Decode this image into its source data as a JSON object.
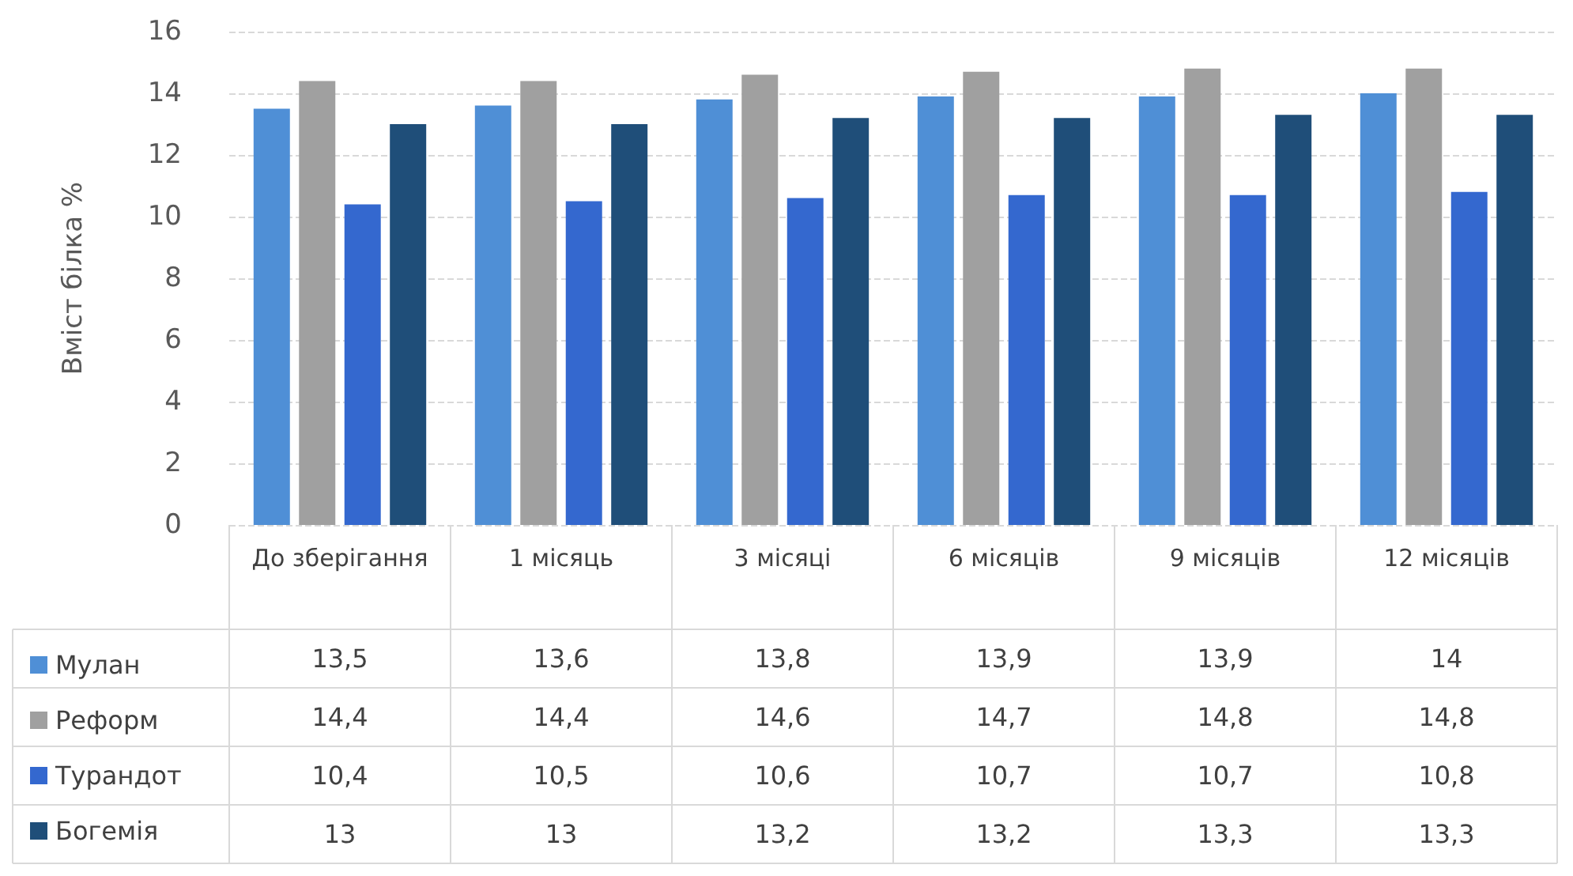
{
  "chart_data": {
    "type": "bar",
    "ylabel": "Вміст білка %",
    "categories": [
      "До зберігання",
      "1 місяць",
      "3 місяці",
      "6 місяців",
      "9 місяців",
      "12 місяців"
    ],
    "ylim": [
      0,
      16
    ],
    "yticks": [
      0,
      2,
      4,
      6,
      8,
      10,
      12,
      14,
      16
    ],
    "grid": "y",
    "legend": "bottom left",
    "series": [
      {
        "name": "Мулан",
        "color": "#4f8fd6",
        "values": [
          13.5,
          13.6,
          13.8,
          13.9,
          13.9,
          14
        ],
        "value_labels": [
          "13,5",
          "13,6",
          "13,8",
          "13,9",
          "13,9",
          "14"
        ]
      },
      {
        "name": "Реформ",
        "color": "#a0a0a0",
        "values": [
          14.4,
          14.4,
          14.6,
          14.7,
          14.8,
          14.8
        ],
        "value_labels": [
          "14,4",
          "14,4",
          "14,6",
          "14,7",
          "14,8",
          "14,8"
        ]
      },
      {
        "name": "Турандот",
        "color": "#3468cf",
        "values": [
          10.4,
          10.5,
          10.6,
          10.7,
          10.7,
          10.8
        ],
        "value_labels": [
          "10,4",
          "10,5",
          "10,6",
          "10,7",
          "10,7",
          "10,8"
        ]
      },
      {
        "name": "Богемія",
        "color": "#1f4e79",
        "values": [
          13,
          13,
          13.2,
          13.2,
          13.3,
          13.3
        ],
        "value_labels": [
          "13",
          "13",
          "13,2",
          "13,2",
          "13,3",
          "13,3"
        ]
      }
    ]
  }
}
